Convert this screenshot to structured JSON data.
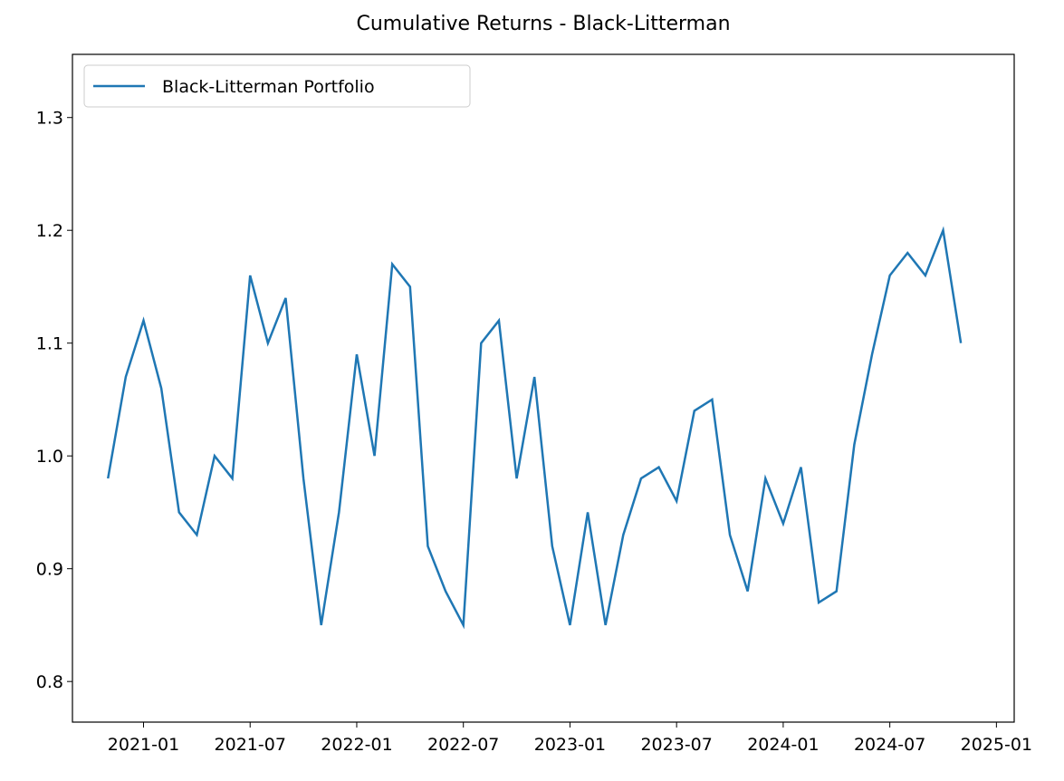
{
  "chart_data": {
    "type": "line",
    "title": "Cumulative Returns - Black-Litterman",
    "x": [
      "2020-11",
      "2020-12",
      "2021-01",
      "2021-02",
      "2021-03",
      "2021-04",
      "2021-05",
      "2021-06",
      "2021-07",
      "2021-08",
      "2021-09",
      "2021-10",
      "2021-11",
      "2021-12",
      "2022-01",
      "2022-02",
      "2022-03",
      "2022-04",
      "2022-05",
      "2022-06",
      "2022-07",
      "2022-08",
      "2022-09",
      "2022-10",
      "2022-11",
      "2022-12",
      "2023-01",
      "2023-02",
      "2023-03",
      "2023-04",
      "2023-05",
      "2023-06",
      "2023-07",
      "2023-08",
      "2023-09",
      "2023-10",
      "2023-11",
      "2023-12",
      "2024-01",
      "2024-02",
      "2024-03",
      "2024-04",
      "2024-05",
      "2024-06",
      "2024-07",
      "2024-08",
      "2024-09",
      "2024-10",
      "2024-11"
    ],
    "series": [
      {
        "name": "Black-Litterman Portfolio",
        "color": "#1f77b4",
        "values": [
          0.98,
          1.07,
          1.12,
          1.06,
          0.95,
          0.93,
          1.0,
          0.98,
          1.16,
          1.1,
          1.14,
          0.98,
          0.85,
          0.95,
          1.09,
          1.0,
          1.17,
          1.15,
          0.92,
          0.88,
          0.85,
          1.1,
          1.12,
          0.98,
          1.07,
          0.92,
          0.85,
          0.95,
          0.85,
          0.93,
          0.98,
          0.99,
          0.96,
          1.04,
          1.05,
          0.93,
          0.88,
          0.98,
          0.94,
          0.99,
          0.87,
          0.88,
          1.01,
          1.09,
          1.16,
          1.18,
          1.16,
          1.2,
          1.1
        ]
      }
    ],
    "xlim": [
      "2020-09",
      "2025-02"
    ],
    "xticks": [
      "2021-01",
      "2021-07",
      "2022-01",
      "2022-07",
      "2023-01",
      "2023-07",
      "2024-01",
      "2024-07",
      "2025-01"
    ],
    "ylim": [
      0.764,
      1.356
    ],
    "yticks": [
      {
        "value": 0.8,
        "label": "0.8"
      },
      {
        "value": 0.9,
        "label": "0.9"
      },
      {
        "value": 1.0,
        "label": "1.0"
      },
      {
        "value": 1.1,
        "label": "1.1"
      },
      {
        "value": 1.2,
        "label": "1.2"
      },
      {
        "value": 1.3,
        "label": "1.3"
      }
    ],
    "legend": "upper left"
  }
}
